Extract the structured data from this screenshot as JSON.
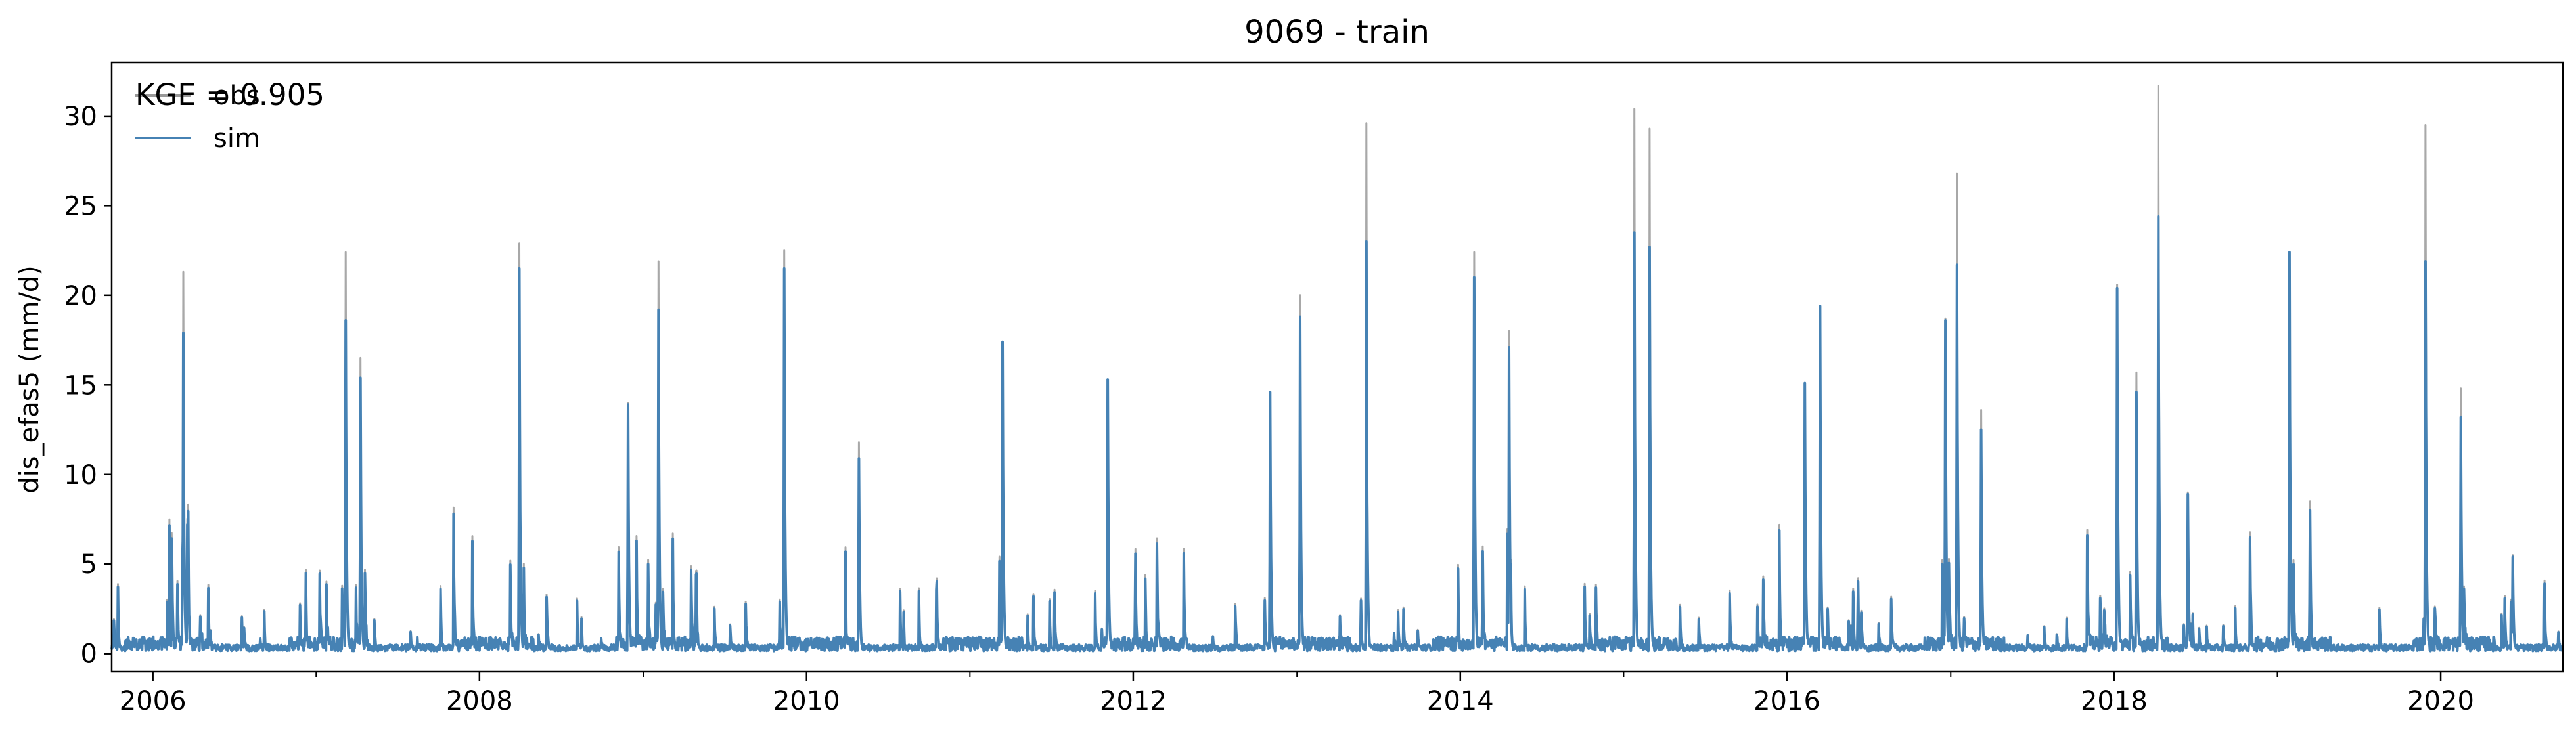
{
  "chart_data": {
    "type": "line",
    "title": "9069 - train",
    "xlabel": "",
    "ylabel": "dis_efas5 (mm/d)",
    "xlim": [
      "2005-10-01",
      "2020-09-30"
    ],
    "ylim": [
      -1.0,
      33.0
    ],
    "x_ticks": [
      "2006",
      "2008",
      "2010",
      "2012",
      "2014",
      "2016",
      "2018",
      "2020"
    ],
    "y_ticks": [
      0,
      5,
      10,
      15,
      20,
      25,
      30
    ],
    "grid": false,
    "legend_position": "top-left",
    "annotation": "KGE = 0.905",
    "colors": {
      "obs": "#999999",
      "sim": "#4682b4"
    },
    "series": [
      {
        "name": "obs",
        "color": "#999999",
        "x": [
          "2006-03-10",
          "2007-03-08",
          "2007-04-10",
          "2008-03-30",
          "2008-11-28",
          "2009-02-04",
          "2009-11-12",
          "2010-04-28",
          "2011-03-15",
          "2011-11-05",
          "2012-11-02",
          "2013-01-08",
          "2013-06-05",
          "2014-02-01",
          "2014-04-20",
          "2015-01-25",
          "2015-02-28",
          "2016-02-10",
          "2016-03-15",
          "2016-12-20",
          "2017-01-15",
          "2017-03-10",
          "2018-01-08",
          "2018-02-20",
          "2018-04-10",
          "2018-06-15",
          "2019-01-28",
          "2019-03-15",
          "2019-11-28",
          "2020-02-15",
          "2020-06-10"
        ],
        "y": [
          21.3,
          22.4,
          16.5,
          22.9,
          14.0,
          21.9,
          22.5,
          11.8,
          17.0,
          15.2,
          14.6,
          20.0,
          29.6,
          22.4,
          18.0,
          30.4,
          29.3,
          15.0,
          19.0,
          18.7,
          26.8,
          13.6,
          20.6,
          15.7,
          31.7,
          9.0,
          22.3,
          8.5,
          29.5,
          14.8,
          5.5
        ]
      },
      {
        "name": "sim",
        "color": "#4682b4",
        "x": [
          "2006-03-10",
          "2007-03-08",
          "2007-04-10",
          "2008-03-30",
          "2008-11-28",
          "2009-02-04",
          "2009-11-12",
          "2010-04-28",
          "2011-03-15",
          "2011-11-05",
          "2012-11-02",
          "2013-01-08",
          "2013-06-05",
          "2014-02-01",
          "2014-04-20",
          "2015-01-25",
          "2015-02-28",
          "2016-02-10",
          "2016-03-15",
          "2016-12-20",
          "2017-01-15",
          "2017-03-10",
          "2018-01-08",
          "2018-02-20",
          "2018-04-10",
          "2018-06-15",
          "2019-01-28",
          "2019-03-15",
          "2019-11-28",
          "2020-02-15",
          "2020-06-10"
        ],
        "y": [
          17.9,
          18.6,
          15.4,
          21.5,
          13.9,
          19.2,
          21.5,
          10.9,
          17.4,
          15.3,
          14.6,
          18.8,
          23.0,
          21.0,
          17.1,
          23.5,
          22.7,
          15.1,
          19.4,
          18.6,
          21.7,
          12.5,
          20.4,
          14.6,
          24.4,
          8.9,
          22.4,
          8.0,
          21.9,
          13.2,
          5.4
        ]
      }
    ]
  }
}
